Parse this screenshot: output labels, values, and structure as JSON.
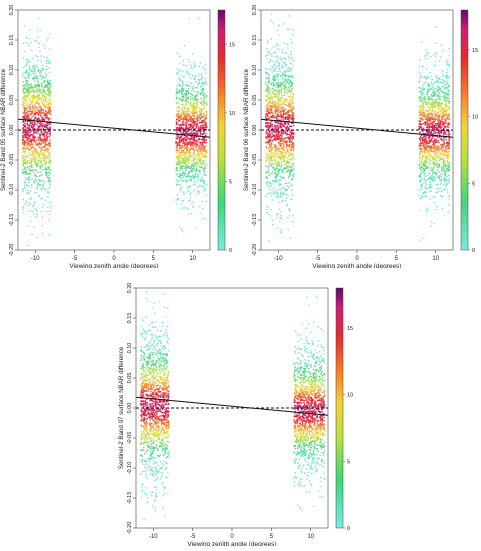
{
  "chart_data": [
    {
      "type": "heatmap",
      "ylabel": "Sentinel-2 Band 05 surface NBAR difference",
      "xlabel": "Viewing zenith angle (degrees)",
      "xlim": [
        -12.2,
        12.2
      ],
      "ylim": [
        -0.2,
        0.2
      ],
      "x_ticks": [
        "-10",
        "-5",
        "0",
        "5",
        "10"
      ],
      "y_ticks": [
        "-0.20",
        "-0.15",
        "-0.10",
        "-0.05",
        "0.00",
        "0.05",
        "0.10",
        "0.15",
        "0.20"
      ],
      "colorbar": {
        "min": 0,
        "max": 17.5,
        "ticks": [
          "0",
          "5",
          "10",
          "15"
        ]
      },
      "clusters": [
        {
          "x_range": [
            -11.7,
            -8.1
          ],
          "center_y": 0.005,
          "spread_y": 0.2
        },
        {
          "x_range": [
            7.8,
            11.7
          ],
          "center_y": -0.003,
          "spread_y": 0.17
        }
      ],
      "regression_line": {
        "x": [
          -12.2,
          12.2
        ],
        "y": [
          0.018,
          -0.012
        ]
      },
      "zero_line": {
        "x": [
          -12.2,
          12.2
        ],
        "y": [
          0.0,
          0.0
        ]
      }
    },
    {
      "type": "heatmap",
      "ylabel": "Sentinel-2 Band 06 surface NBAR difference",
      "xlabel": "Viewing zenith angle (degrees)",
      "xlim": [
        -12.2,
        12.2
      ],
      "ylim": [
        -0.2,
        0.2
      ],
      "x_ticks": [
        "-10",
        "-5",
        "0",
        "5",
        "10"
      ],
      "y_ticks": [
        "-0.20",
        "-0.15",
        "-0.10",
        "-0.05",
        "0.00",
        "0.05",
        "0.10",
        "0.15",
        "0.20"
      ],
      "colorbar": {
        "min": 0,
        "max": 18,
        "ticks": [
          "0",
          "5",
          "10",
          "15"
        ]
      },
      "clusters": [
        {
          "x_range": [
            -11.7,
            -8.1
          ],
          "center_y": 0.005,
          "spread_y": 0.2
        },
        {
          "x_range": [
            7.8,
            11.7
          ],
          "center_y": -0.003,
          "spread_y": 0.17
        }
      ],
      "regression_line": {
        "x": [
          -12.2,
          12.2
        ],
        "y": [
          0.018,
          -0.012
        ]
      },
      "zero_line": {
        "x": [
          -12.2,
          12.2
        ],
        "y": [
          0.0,
          0.0
        ]
      }
    },
    {
      "type": "heatmap",
      "ylabel": "Sentinel-2 Band 07 surface NBAR difference",
      "xlabel": "Viewing zenith angle (degrees)",
      "xlim": [
        -12.2,
        12.2
      ],
      "ylim": [
        -0.2,
        0.2
      ],
      "x_ticks": [
        "-10",
        "-5",
        "0",
        "5",
        "10"
      ],
      "y_ticks": [
        "-0.20",
        "-0.15",
        "-0.10",
        "-0.05",
        "0.00",
        "0.05",
        "0.10",
        "0.15",
        "0.20"
      ],
      "colorbar": {
        "min": 0,
        "max": 18,
        "ticks": [
          "0",
          "5",
          "10",
          "15"
        ]
      },
      "clusters": [
        {
          "x_range": [
            -11.7,
            -8.1
          ],
          "center_y": 0.005,
          "spread_y": 0.2
        },
        {
          "x_range": [
            7.8,
            11.7
          ],
          "center_y": -0.003,
          "spread_y": 0.17
        }
      ],
      "regression_line": {
        "x": [
          -12.2,
          12.2
        ],
        "y": [
          0.018,
          -0.012
        ]
      },
      "zero_line": {
        "x": [
          -12.2,
          12.2
        ],
        "y": [
          0.0,
          0.0
        ]
      }
    }
  ]
}
